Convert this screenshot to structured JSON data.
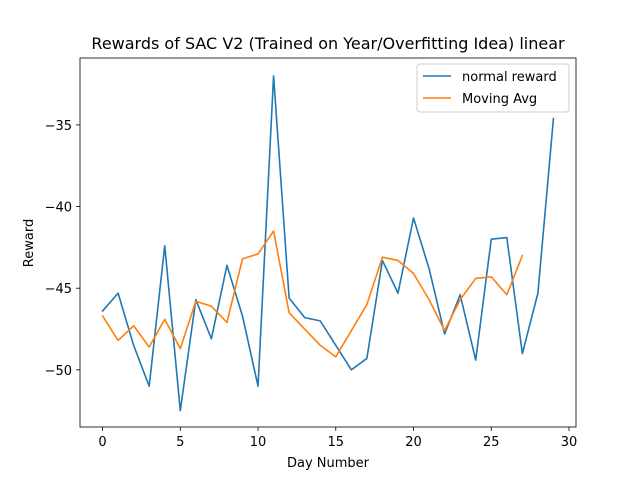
{
  "chart_data": {
    "type": "line",
    "title": "Rewards of SAC V2 (Trained on Year/Overfitting Idea) linear",
    "xlabel": "Day Number",
    "ylabel": "Reward",
    "xlim": [
      -1.45,
      30.45
    ],
    "ylim": [
      -53.5,
      -30.9
    ],
    "xticks": [
      0,
      5,
      10,
      15,
      20,
      25,
      30
    ],
    "yticks": [
      -50,
      -45,
      -40,
      -35
    ],
    "xtick_labels": [
      "0",
      "5",
      "10",
      "15",
      "20",
      "25",
      "30"
    ],
    "ytick_labels": [
      "−50",
      "−45",
      "−40",
      "−35"
    ],
    "grid": false,
    "legend_position": "top-right",
    "series": [
      {
        "name": "normal reward",
        "color": "#1f77b4",
        "x": [
          0,
          1,
          2,
          3,
          4,
          5,
          6,
          7,
          8,
          9,
          10,
          11,
          12,
          13,
          14,
          15,
          16,
          17,
          18,
          19,
          20,
          21,
          22,
          23,
          24,
          25,
          26,
          27,
          28,
          29
        ],
        "values": [
          -46.4,
          -45.3,
          -48.5,
          -51.0,
          -42.4,
          -52.5,
          -45.7,
          -48.1,
          -43.6,
          -46.7,
          -51.0,
          -32.0,
          -45.6,
          -46.8,
          -47.0,
          -48.5,
          -50.0,
          -49.3,
          -43.3,
          -45.3,
          -40.7,
          -43.8,
          -47.8,
          -45.4,
          -49.4,
          -42.0,
          -41.9,
          -49.0,
          -45.3,
          -34.6
        ]
      },
      {
        "name": "Moving Avg",
        "color": "#ff7f0e",
        "x": [
          0,
          1,
          2,
          3,
          4,
          5,
          6,
          7,
          8,
          9,
          10,
          11,
          12,
          13,
          14,
          15,
          16,
          17,
          18,
          19,
          20,
          21,
          22,
          23,
          24,
          25,
          26,
          27
        ],
        "values": [
          -46.7,
          -48.2,
          -47.3,
          -48.6,
          -46.9,
          -48.7,
          -45.8,
          -46.1,
          -47.1,
          -43.2,
          -42.9,
          -41.5,
          -46.5,
          -47.5,
          -48.5,
          -49.2,
          -47.6,
          -46.0,
          -43.1,
          -43.3,
          -44.1,
          -45.7,
          -47.6,
          -45.7,
          -44.4,
          -44.3,
          -45.4,
          -43.0
        ]
      }
    ]
  }
}
